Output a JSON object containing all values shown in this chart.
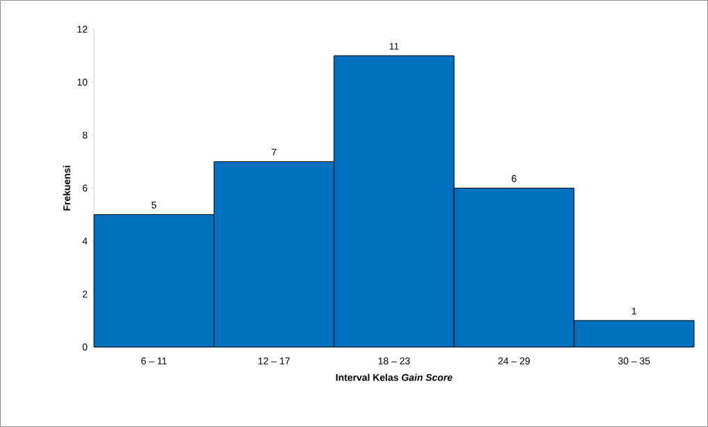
{
  "chart_data": {
    "type": "bar",
    "categories": [
      "6 – 11",
      "12 – 17",
      "18 – 23",
      "24 – 29",
      "30 – 35"
    ],
    "values": [
      5,
      7,
      11,
      6,
      1
    ],
    "color": "#0070c0",
    "ylim": [
      0,
      12
    ],
    "yticks": [
      0,
      2,
      4,
      6,
      8,
      10,
      12
    ],
    "xlabel": "Interval Kelas *Gain Score*",
    "ylabel": "Frekuensi",
    "data_labels": true
  }
}
